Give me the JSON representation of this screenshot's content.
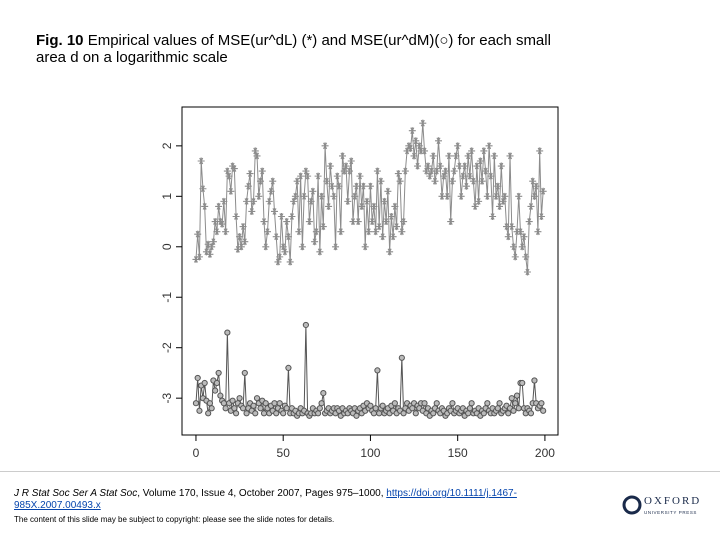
{
  "slide": {
    "title_label": "Fig. 10",
    "title_text": "Empirical values of MSE(ur^dL) (*) and MSE(ur^dM)(○) for each small area d on a logarithmic scale",
    "citation_journal": "J R Stat Soc Ser A Stat Soc",
    "citation_details": ", Volume 170, Issue 4, October 2007, Pages 975–1000, ",
    "citation_doi": "https://doi.org/10.1111/j.1467-985X.2007.00493.x",
    "copyright_note": "The content of this slide may be subject to copyright: please see the slide notes for details.",
    "logo_name": "OXFORD",
    "logo_sub": "UNIVERSITY PRESS"
  },
  "chart_data": {
    "type": "line",
    "x": [
      0,
      1,
      2,
      3,
      4,
      5,
      6,
      7,
      8,
      9,
      10,
      11,
      12,
      13,
      14,
      15,
      16,
      17,
      18,
      19,
      20,
      21,
      22,
      23,
      24,
      25,
      26,
      27,
      28,
      29,
      30,
      31,
      32,
      33,
      34,
      35,
      36,
      37,
      38,
      39,
      40,
      41,
      42,
      43,
      44,
      45,
      46,
      47,
      48,
      49,
      50,
      51,
      52,
      53,
      54,
      55,
      56,
      57,
      58,
      59,
      60,
      61,
      62,
      63,
      64,
      65,
      66,
      67,
      68,
      69,
      70,
      71,
      72,
      73,
      74,
      75,
      76,
      77,
      78,
      79,
      80,
      81,
      82,
      83,
      84,
      85,
      86,
      87,
      88,
      89,
      90,
      91,
      92,
      93,
      94,
      95,
      96,
      97,
      98,
      99,
      100,
      101,
      102,
      103,
      104,
      105,
      106,
      107,
      108,
      109,
      110,
      111,
      112,
      113,
      114,
      115,
      116,
      117,
      118,
      119,
      120,
      121,
      122,
      123,
      124,
      125,
      126,
      127,
      128,
      129,
      130,
      131,
      132,
      133,
      134,
      135,
      136,
      137,
      138,
      139,
      140,
      141,
      142,
      143,
      144,
      145,
      146,
      147,
      148,
      149,
      150,
      151,
      152,
      153,
      154,
      155,
      156,
      157,
      158,
      159,
      160,
      161,
      162,
      163,
      164,
      165,
      166,
      167,
      168,
      169,
      170,
      171,
      172,
      173,
      174,
      175,
      176,
      177,
      178,
      179,
      180,
      181,
      182,
      183,
      184,
      185,
      186,
      187,
      188,
      189,
      190,
      191,
      192,
      193,
      194,
      195,
      196,
      197,
      198,
      199
    ],
    "series": [
      {
        "color": "#8c8c8c",
        "marker": "star",
        "values": [
          -0.25,
          0.25,
          -0.2,
          1.7,
          1.15,
          0.8,
          -0.1,
          0.05,
          -0.15,
          0.0,
          0.1,
          0.5,
          0.3,
          0.8,
          0.5,
          0.45,
          0.9,
          0.3,
          1.5,
          1.4,
          1.1,
          1.6,
          1.55,
          0.6,
          -0.05,
          0.2,
          0.0,
          0.4,
          0.1,
          0.9,
          1.2,
          1.45,
          0.7,
          0.9,
          1.9,
          1.8,
          1.0,
          1.3,
          1.5,
          0.5,
          0.0,
          0.3,
          0.9,
          1.1,
          1.3,
          0.7,
          0.2,
          -0.3,
          -0.2,
          0.6,
          0.0,
          -0.1,
          0.5,
          0.2,
          -0.3,
          0.6,
          0.9,
          1.0,
          1.3,
          0.3,
          1.4,
          0.0,
          1.0,
          1.5,
          1.4,
          0.5,
          0.9,
          1.1,
          0.1,
          0.3,
          1.4,
          -0.1,
          1.0,
          0.4,
          2.0,
          1.3,
          0.8,
          1.6,
          1.2,
          1.0,
          0.0,
          1.4,
          1.2,
          0.3,
          1.8,
          1.5,
          1.6,
          0.9,
          1.5,
          1.7,
          0.5,
          1.0,
          1.2,
          0.5,
          1.4,
          0.8,
          1.2,
          0.0,
          0.9,
          0.3,
          1.2,
          0.5,
          0.8,
          0.3,
          1.5,
          0.4,
          1.3,
          0.2,
          0.9,
          0.5,
          1.1,
          -0.1,
          0.6,
          0.2,
          0.8,
          0.4,
          1.45,
          1.3,
          0.3,
          0.5,
          1.5,
          1.9,
          2.0,
          1.95,
          2.3,
          1.8,
          2.1,
          1.6,
          2.0,
          1.9,
          2.45,
          1.9,
          1.5,
          1.6,
          1.4,
          1.5,
          1.8,
          1.3,
          1.5,
          2.1,
          1.6,
          1.0,
          1.4,
          1.5,
          1.0,
          1.8,
          0.5,
          1.3,
          1.5,
          1.8,
          2.0,
          1.6,
          1.0,
          1.4,
          1.6,
          1.2,
          1.8,
          1.4,
          1.9,
          1.3,
          0.8,
          1.6,
          0.9,
          1.7,
          1.3,
          1.9,
          1.5,
          1.0,
          2.0,
          1.4,
          0.6,
          1.8,
          1.0,
          1.2,
          0.8,
          1.6,
          0.9,
          1.0,
          0.4,
          0.2,
          1.8,
          0.4,
          0.0,
          -0.2,
          0.3,
          1.0,
          0.3,
          0.0,
          0.2,
          -0.2,
          -0.5,
          0.5,
          0.8,
          1.3,
          1.0,
          1.2,
          0.3,
          1.9,
          0.6,
          1.1
        ]
      },
      {
        "color": "#555555",
        "marker": "circle",
        "values": [
          -3.1,
          -2.6,
          -3.25,
          -2.75,
          -3.0,
          -2.7,
          -3.05,
          -3.3,
          -3.1,
          -3.2,
          -2.65,
          -2.85,
          -2.7,
          -2.5,
          -2.95,
          -3.05,
          -3.1,
          -3.2,
          -1.7,
          -3.1,
          -3.25,
          -3.05,
          -3.2,
          -3.3,
          -3.1,
          -3.0,
          -3.15,
          -3.2,
          -2.5,
          -3.3,
          -3.2,
          -3.1,
          -3.25,
          -3.15,
          -3.3,
          -3.0,
          -3.1,
          -3.2,
          -3.05,
          -3.3,
          -3.1,
          -3.2,
          -3.3,
          -3.15,
          -3.25,
          -3.1,
          -3.3,
          -3.2,
          -3.1,
          -3.25,
          -3.3,
          -3.15,
          -3.2,
          -2.4,
          -3.3,
          -3.2,
          -3.3,
          -3.25,
          -3.35,
          -3.3,
          -3.2,
          -3.3,
          -3.25,
          -1.55,
          -3.3,
          -3.35,
          -3.3,
          -3.2,
          -3.3,
          -3.25,
          -3.3,
          -3.2,
          -3.1,
          -2.9,
          -3.3,
          -3.25,
          -3.2,
          -3.3,
          -3.25,
          -3.2,
          -3.3,
          -3.2,
          -3.25,
          -3.35,
          -3.2,
          -3.3,
          -3.25,
          -3.3,
          -3.2,
          -3.25,
          -3.3,
          -3.2,
          -3.35,
          -3.25,
          -3.2,
          -3.3,
          -3.15,
          -3.25,
          -3.1,
          -3.2,
          -3.15,
          -3.25,
          -3.3,
          -3.2,
          -2.45,
          -3.3,
          -3.2,
          -3.15,
          -3.3,
          -3.25,
          -3.2,
          -3.3,
          -3.15,
          -3.25,
          -3.1,
          -3.3,
          -3.2,
          -3.25,
          -2.2,
          -3.3,
          -3.2,
          -3.1,
          -3.25,
          -3.15,
          -3.2,
          -3.1,
          -3.3,
          -3.15,
          -3.2,
          -3.1,
          -3.25,
          -3.1,
          -3.3,
          -3.2,
          -3.35,
          -3.25,
          -3.3,
          -3.2,
          -3.1,
          -3.25,
          -3.3,
          -3.2,
          -3.25,
          -3.35,
          -3.3,
          -3.2,
          -3.25,
          -3.1,
          -3.3,
          -3.25,
          -3.2,
          -3.3,
          -3.25,
          -3.2,
          -3.35,
          -3.25,
          -3.3,
          -3.2,
          -3.1,
          -3.3,
          -3.25,
          -3.3,
          -3.2,
          -3.35,
          -3.25,
          -3.3,
          -3.2,
          -3.1,
          -3.25,
          -3.3,
          -3.2,
          -3.3,
          -3.25,
          -3.2,
          -3.1,
          -3.3,
          -3.25,
          -3.2,
          -3.15,
          -3.3,
          -3.2,
          -3.0,
          -3.25,
          -3.1,
          -2.95,
          -3.2,
          -2.7,
          -2.7,
          -3.2,
          -3.3,
          -3.2,
          -3.25,
          -3.3,
          -3.1,
          -2.65,
          -3.1,
          -3.2,
          -3.15,
          -3.1,
          -3.25
        ]
      }
    ],
    "xlim": [
      -8,
      207.5
    ],
    "xticks": [
      0,
      50,
      100,
      150,
      200
    ],
    "ylim": [
      -3.73,
      2.77
    ],
    "yticks": [
      -3,
      -2,
      -1,
      0,
      1,
      2
    ],
    "grid": false
  }
}
